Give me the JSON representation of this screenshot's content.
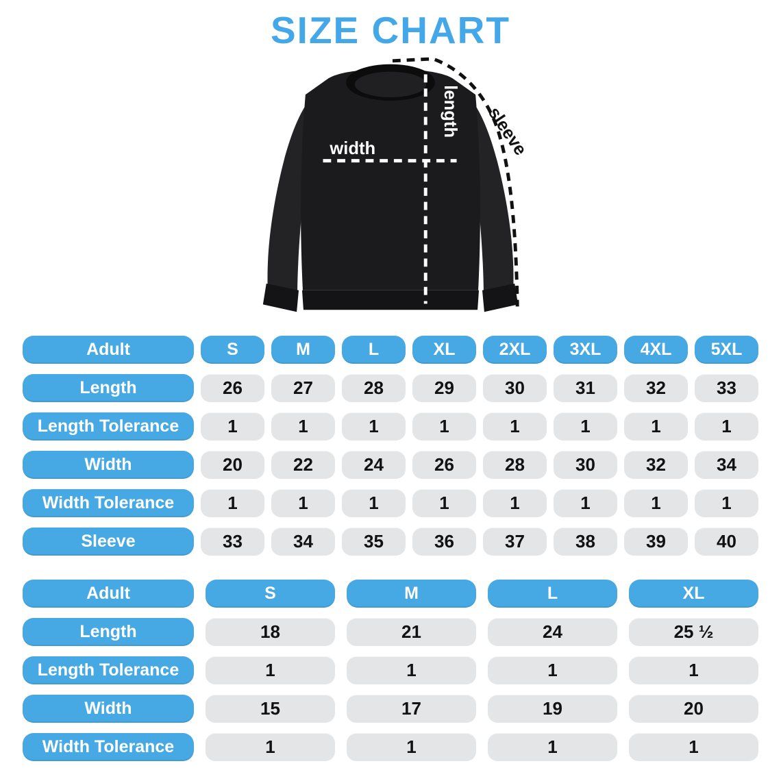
{
  "title": "SIZE CHART",
  "colors": {
    "accent_blue": "#47A9E4",
    "title_blue": "#44A8E8",
    "cell_gray": "#E4E5E7",
    "value_text": "#121212",
    "shirt_black": "#1B1B1D",
    "shirt_sleeve": "#232326",
    "shirt_rib": "#141416",
    "collar_black": "#0C0C0D"
  },
  "diagram": {
    "width_label": "width",
    "length_label": "length",
    "sleeve_label": "sleeve"
  },
  "tables": [
    {
      "header_label": "Adult",
      "sizes": [
        "S",
        "M",
        "L",
        "XL",
        "2XL",
        "3XL",
        "4XL",
        "5XL"
      ],
      "rows": [
        {
          "label": "Length",
          "values": [
            "26",
            "27",
            "28",
            "29",
            "30",
            "31",
            "32",
            "33"
          ]
        },
        {
          "label": "Length Tolerance",
          "values": [
            "1",
            "1",
            "1",
            "1",
            "1",
            "1",
            "1",
            "1"
          ]
        },
        {
          "label": "Width",
          "values": [
            "20",
            "22",
            "24",
            "26",
            "28",
            "30",
            "32",
            "34"
          ]
        },
        {
          "label": "Width Tolerance",
          "values": [
            "1",
            "1",
            "1",
            "1",
            "1",
            "1",
            "1",
            "1"
          ]
        },
        {
          "label": "Sleeve",
          "values": [
            "33",
            "34",
            "35",
            "36",
            "37",
            "38",
            "39",
            "40"
          ]
        }
      ]
    },
    {
      "header_label": "Adult",
      "sizes": [
        "S",
        "M",
        "L",
        "XL"
      ],
      "rows": [
        {
          "label": "Length",
          "values": [
            "18",
            "21",
            "24",
            "25 ½"
          ]
        },
        {
          "label": "Length Tolerance",
          "values": [
            "1",
            "1",
            "1",
            "1"
          ]
        },
        {
          "label": "Width",
          "values": [
            "15",
            "17",
            "19",
            "20"
          ]
        },
        {
          "label": "Width Tolerance",
          "values": [
            "1",
            "1",
            "1",
            "1"
          ]
        }
      ]
    }
  ],
  "chart_data": [
    {
      "type": "table",
      "title": "Sweatshirt size chart — Adult S to 5XL (inches)",
      "columns": [
        "Adult",
        "S",
        "M",
        "L",
        "XL",
        "2XL",
        "3XL",
        "4XL",
        "5XL"
      ],
      "rows": [
        [
          "Length",
          26,
          27,
          28,
          29,
          30,
          31,
          32,
          33
        ],
        [
          "Length Tolerance",
          1,
          1,
          1,
          1,
          1,
          1,
          1,
          1
        ],
        [
          "Width",
          20,
          22,
          24,
          26,
          28,
          30,
          32,
          34
        ],
        [
          "Width Tolerance",
          1,
          1,
          1,
          1,
          1,
          1,
          1,
          1
        ],
        [
          "Sleeve",
          33,
          34,
          35,
          36,
          37,
          38,
          39,
          40
        ]
      ]
    },
    {
      "type": "table",
      "title": "Sweatshirt size chart — Adult S to XL (inches)",
      "columns": [
        "Adult",
        "S",
        "M",
        "L",
        "XL"
      ],
      "rows": [
        [
          "Length",
          18,
          21,
          24,
          25.5
        ],
        [
          "Length Tolerance",
          1,
          1,
          1,
          1
        ],
        [
          "Width",
          15,
          17,
          19,
          20
        ],
        [
          "Width Tolerance",
          1,
          1,
          1,
          1
        ]
      ]
    }
  ]
}
